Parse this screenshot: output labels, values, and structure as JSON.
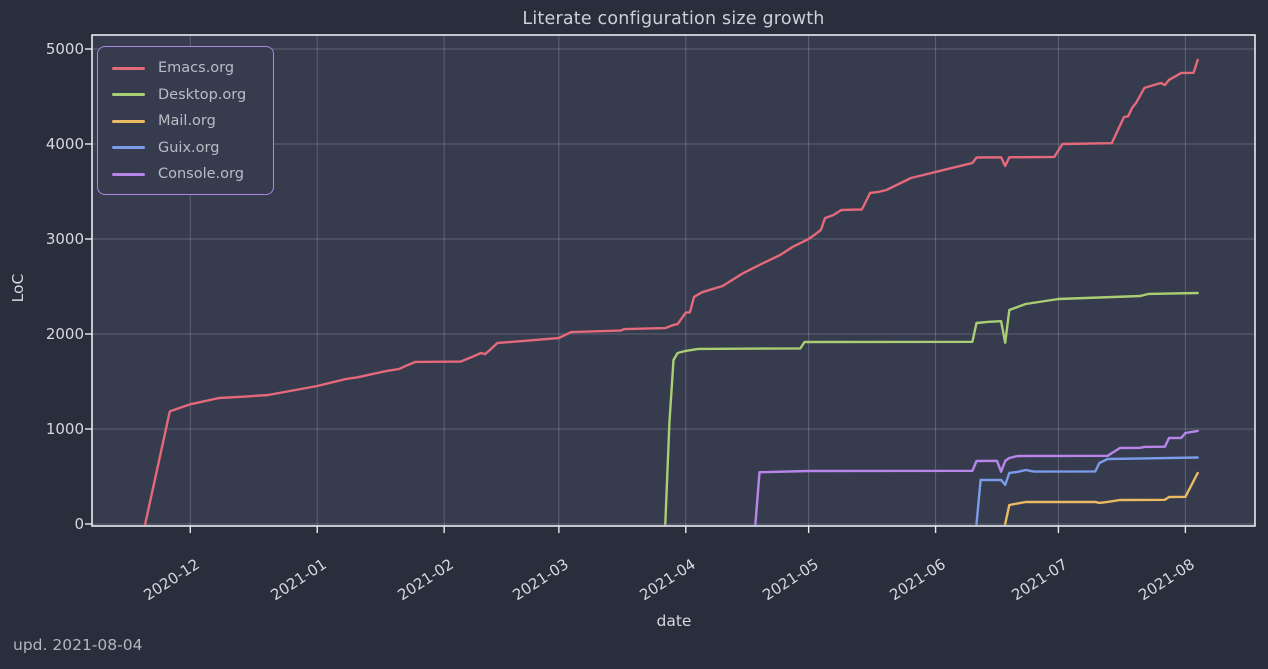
{
  "title": "Literate configuration size growth",
  "footer": "upd. 2021-08-04",
  "axes": {
    "x_label": "date",
    "y_label": "LoC"
  },
  "theme": {
    "background_outer": "#292d3c",
    "background_plot": "#363b4e",
    "grid_color": "rgba(235,238,245,0.22)",
    "spine_color": "#e9ebf0",
    "tick_text_color": "#d6d8de",
    "legend_border_color": "#ab87de",
    "legend_text_color": "#b9bdc6"
  },
  "chart_data": {
    "type": "line",
    "title": "Literate configuration size growth",
    "xlabel": "date",
    "ylabel": "LoC",
    "grid": true,
    "legend_position": "upper left",
    "ylim": [
      0,
      5000
    ],
    "xlim": [
      "2020-11-07",
      "2021-08-18"
    ],
    "y_ticks": [
      0,
      1000,
      2000,
      3000,
      4000,
      5000
    ],
    "x_ticks": [
      {
        "label": "2020-12",
        "date": "2020-12-01"
      },
      {
        "label": "2021-01",
        "date": "2021-01-01"
      },
      {
        "label": "2021-02",
        "date": "2021-02-01"
      },
      {
        "label": "2021-03",
        "date": "2021-03-01"
      },
      {
        "label": "2021-04",
        "date": "2021-04-01"
      },
      {
        "label": "2021-05",
        "date": "2021-05-01"
      },
      {
        "label": "2021-06",
        "date": "2021-06-01"
      },
      {
        "label": "2021-07",
        "date": "2021-07-01"
      },
      {
        "label": "2021-08",
        "date": "2021-08-01"
      }
    ],
    "series": [
      {
        "name": "Emacs.org",
        "color": "#e4697a",
        "points": [
          [
            "2020-11-20",
            0
          ],
          [
            "2020-11-26",
            1185
          ],
          [
            "2020-12-01",
            1260
          ],
          [
            "2020-12-08",
            1326
          ],
          [
            "2020-12-14",
            1340
          ],
          [
            "2020-12-20",
            1358
          ],
          [
            "2021-01-01",
            1453
          ],
          [
            "2021-01-08",
            1526
          ],
          [
            "2021-01-11",
            1545
          ],
          [
            "2021-01-14",
            1575
          ],
          [
            "2021-01-18",
            1612
          ],
          [
            "2021-01-21",
            1632
          ],
          [
            "2021-01-23",
            1672
          ],
          [
            "2021-01-25",
            1706
          ],
          [
            "2021-02-05",
            1710
          ],
          [
            "2021-02-08",
            1762
          ],
          [
            "2021-02-10",
            1800
          ],
          [
            "2021-02-11",
            1788
          ],
          [
            "2021-02-12",
            1825
          ],
          [
            "2021-02-14",
            1905
          ],
          [
            "2021-02-20",
            1925
          ],
          [
            "2021-03-01",
            1958
          ],
          [
            "2021-03-04",
            2020
          ],
          [
            "2021-03-16",
            2036
          ],
          [
            "2021-03-17",
            2052
          ],
          [
            "2021-03-27",
            2062
          ],
          [
            "2021-03-29",
            2096
          ],
          [
            "2021-03-30",
            2104
          ],
          [
            "2021-04-01",
            2225
          ],
          [
            "2021-04-02",
            2228
          ],
          [
            "2021-04-03",
            2390
          ],
          [
            "2021-04-05",
            2440
          ],
          [
            "2021-04-10",
            2505
          ],
          [
            "2021-04-15",
            2640
          ],
          [
            "2021-04-20",
            2748
          ],
          [
            "2021-04-24",
            2830
          ],
          [
            "2021-04-27",
            2915
          ],
          [
            "2021-05-01",
            3000
          ],
          [
            "2021-05-03",
            3062
          ],
          [
            "2021-05-04",
            3095
          ],
          [
            "2021-05-05",
            3220
          ],
          [
            "2021-05-07",
            3252
          ],
          [
            "2021-05-09",
            3305
          ],
          [
            "2021-05-14",
            3312
          ],
          [
            "2021-05-16",
            3484
          ],
          [
            "2021-05-18",
            3496
          ],
          [
            "2021-05-20",
            3516
          ],
          [
            "2021-05-26",
            3642
          ],
          [
            "2021-05-31",
            3695
          ],
          [
            "2021-06-01",
            3706
          ],
          [
            "2021-06-08",
            3780
          ],
          [
            "2021-06-10",
            3800
          ],
          [
            "2021-06-11",
            3858
          ],
          [
            "2021-06-17",
            3860
          ],
          [
            "2021-06-18",
            3768
          ],
          [
            "2021-06-19",
            3860
          ],
          [
            "2021-06-30",
            3864
          ],
          [
            "2021-07-02",
            4000
          ],
          [
            "2021-07-14",
            4008
          ],
          [
            "2021-07-17",
            4284
          ],
          [
            "2021-07-18",
            4292
          ],
          [
            "2021-07-19",
            4380
          ],
          [
            "2021-07-20",
            4435
          ],
          [
            "2021-07-22",
            4590
          ],
          [
            "2021-07-26",
            4642
          ],
          [
            "2021-07-27",
            4620
          ],
          [
            "2021-07-28",
            4675
          ],
          [
            "2021-07-31",
            4748
          ],
          [
            "2021-08-03",
            4750
          ],
          [
            "2021-08-04",
            4885
          ]
        ]
      },
      {
        "name": "Desktop.org",
        "color": "#a9ce73",
        "points": [
          [
            "2021-03-27",
            0
          ],
          [
            "2021-03-28",
            1063
          ],
          [
            "2021-03-29",
            1726
          ],
          [
            "2021-03-30",
            1800
          ],
          [
            "2021-04-01",
            1822
          ],
          [
            "2021-04-04",
            1843
          ],
          [
            "2021-04-29",
            1848
          ],
          [
            "2021-04-30",
            1916
          ],
          [
            "2021-06-10",
            1918
          ],
          [
            "2021-06-11",
            2116
          ],
          [
            "2021-06-14",
            2128
          ],
          [
            "2021-06-17",
            2135
          ],
          [
            "2021-06-18",
            1908
          ],
          [
            "2021-06-19",
            2253
          ],
          [
            "2021-06-21",
            2284
          ],
          [
            "2021-06-23",
            2316
          ],
          [
            "2021-07-01",
            2368
          ],
          [
            "2021-07-21",
            2400
          ],
          [
            "2021-07-23",
            2422
          ],
          [
            "2021-08-04",
            2432
          ]
        ]
      },
      {
        "name": "Mail.org",
        "color": "#ecba63",
        "points": [
          [
            "2021-06-18",
            0
          ],
          [
            "2021-06-19",
            200
          ],
          [
            "2021-06-23",
            232
          ],
          [
            "2021-07-10",
            233
          ],
          [
            "2021-07-11",
            222
          ],
          [
            "2021-07-13",
            233
          ],
          [
            "2021-07-16",
            253
          ],
          [
            "2021-07-27",
            255
          ],
          [
            "2021-07-28",
            284
          ],
          [
            "2021-08-01",
            286
          ],
          [
            "2021-08-04",
            537
          ]
        ]
      },
      {
        "name": "Guix.org",
        "color": "#7b9ce8",
        "points": [
          [
            "2021-06-11",
            0
          ],
          [
            "2021-06-12",
            463
          ],
          [
            "2021-06-17",
            463
          ],
          [
            "2021-06-18",
            412
          ],
          [
            "2021-06-19",
            537
          ],
          [
            "2021-06-21",
            548
          ],
          [
            "2021-06-23",
            568
          ],
          [
            "2021-06-25",
            552
          ],
          [
            "2021-07-10",
            554
          ],
          [
            "2021-07-11",
            642
          ],
          [
            "2021-07-13",
            684
          ],
          [
            "2021-08-04",
            700
          ]
        ]
      },
      {
        "name": "Console.org",
        "color": "#b886ea",
        "points": [
          [
            "2021-04-18",
            0
          ],
          [
            "2021-04-19",
            545
          ],
          [
            "2021-05-01",
            558
          ],
          [
            "2021-06-10",
            560
          ],
          [
            "2021-06-11",
            663
          ],
          [
            "2021-06-16",
            665
          ],
          [
            "2021-06-17",
            551
          ],
          [
            "2021-06-18",
            664
          ],
          [
            "2021-06-19",
            695
          ],
          [
            "2021-06-21",
            716
          ],
          [
            "2021-07-13",
            718
          ],
          [
            "2021-07-16",
            800
          ],
          [
            "2021-07-21",
            802
          ],
          [
            "2021-07-22",
            812
          ],
          [
            "2021-07-27",
            814
          ],
          [
            "2021-07-28",
            905
          ],
          [
            "2021-07-31",
            906
          ],
          [
            "2021-08-01",
            958
          ],
          [
            "2021-08-04",
            980
          ]
        ]
      }
    ]
  }
}
